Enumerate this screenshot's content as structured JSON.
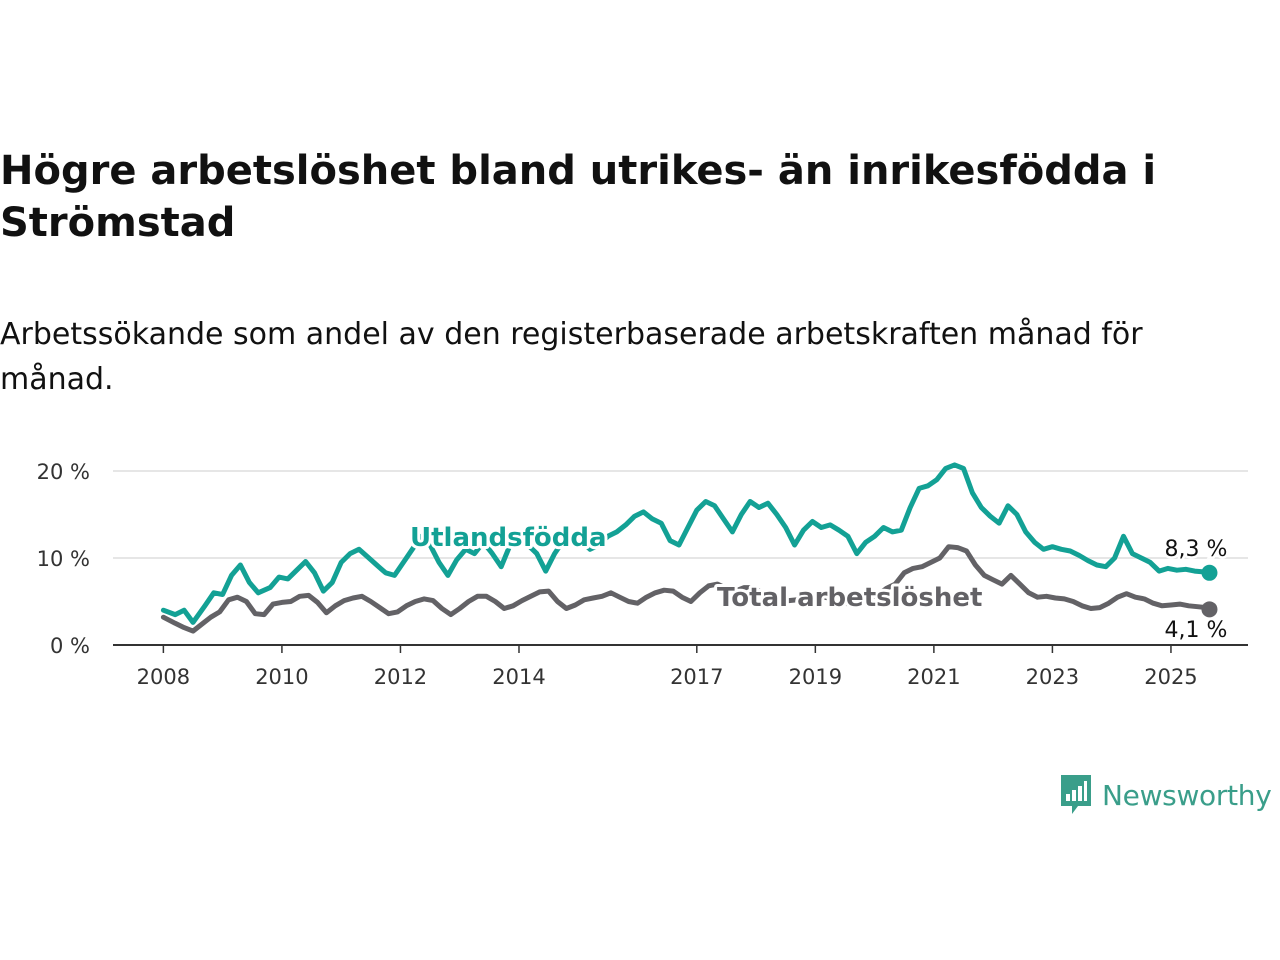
{
  "title": "Högre arbetslöshet bland utrikes- än inrikesfödda i Strömstad",
  "subtitle": "Arbetssökande som andel av den registerbaserade arbetskraften månad för månad.",
  "brand": {
    "name": "Newsworthy",
    "icon": "newsworthy-logo-icon",
    "color": "#3a9e8a"
  },
  "chart_data": {
    "type": "line",
    "y_ticks": [
      {
        "value": 0,
        "label": "0 %"
      },
      {
        "value": 10,
        "label": "10 %"
      },
      {
        "value": 20,
        "label": "20 %"
      }
    ],
    "x_ticks": [
      {
        "value": 2008.0,
        "label": "2008"
      },
      {
        "value": 2010.0,
        "label": "2010"
      },
      {
        "value": 2012.0,
        "label": "2012"
      },
      {
        "value": 2014.0,
        "label": "2014"
      },
      {
        "value": 2017.0,
        "label": "2017"
      },
      {
        "value": 2019.0,
        "label": "2019"
      },
      {
        "value": 2021.0,
        "label": "2021"
      },
      {
        "value": 2023.0,
        "label": "2023"
      },
      {
        "value": 2025.0,
        "label": "2025"
      }
    ],
    "xlim": [
      2007.15,
      2026.3
    ],
    "ylim": [
      0,
      20
    ],
    "grid": true,
    "series": [
      {
        "name": "Utlandsfödda",
        "color": "#13a195",
        "end_label": "8,3 %",
        "points": [
          [
            2008.0,
            4.0
          ],
          [
            2008.2,
            3.5
          ],
          [
            2008.35,
            4.0
          ],
          [
            2008.5,
            2.6
          ],
          [
            2008.7,
            4.5
          ],
          [
            2008.85,
            6.0
          ],
          [
            2009.0,
            5.8
          ],
          [
            2009.15,
            8.0
          ],
          [
            2009.3,
            9.2
          ],
          [
            2009.45,
            7.2
          ],
          [
            2009.6,
            6.0
          ],
          [
            2009.8,
            6.6
          ],
          [
            2009.95,
            7.8
          ],
          [
            2010.1,
            7.6
          ],
          [
            2010.25,
            8.6
          ],
          [
            2010.4,
            9.6
          ],
          [
            2010.55,
            8.3
          ],
          [
            2010.7,
            6.2
          ],
          [
            2010.85,
            7.2
          ],
          [
            2011.0,
            9.5
          ],
          [
            2011.15,
            10.5
          ],
          [
            2011.3,
            11.0
          ],
          [
            2011.45,
            10.1
          ],
          [
            2011.6,
            9.2
          ],
          [
            2011.75,
            8.3
          ],
          [
            2011.9,
            8.0
          ],
          [
            2012.05,
            9.5
          ],
          [
            2012.2,
            11.0
          ],
          [
            2012.35,
            12.5
          ],
          [
            2012.5,
            11.5
          ],
          [
            2012.65,
            9.5
          ],
          [
            2012.8,
            8.0
          ],
          [
            2012.95,
            9.8
          ],
          [
            2013.1,
            11.0
          ],
          [
            2013.25,
            10.5
          ],
          [
            2013.4,
            11.8
          ],
          [
            2013.55,
            10.5
          ],
          [
            2013.7,
            9.0
          ],
          [
            2013.85,
            11.5
          ],
          [
            2014.0,
            12.5
          ],
          [
            2014.15,
            11.5
          ],
          [
            2014.3,
            10.5
          ],
          [
            2014.45,
            8.5
          ],
          [
            2014.6,
            10.5
          ],
          [
            2014.75,
            12.0
          ],
          [
            2014.9,
            12.5
          ],
          [
            2015.05,
            12.0
          ],
          [
            2015.2,
            11.0
          ],
          [
            2015.35,
            11.5
          ],
          [
            2015.5,
            12.5
          ],
          [
            2015.65,
            13.0
          ],
          [
            2015.8,
            13.8
          ],
          [
            2015.95,
            14.8
          ],
          [
            2016.1,
            15.3
          ],
          [
            2016.25,
            14.5
          ],
          [
            2016.4,
            14.0
          ],
          [
            2016.55,
            12.0
          ],
          [
            2016.7,
            11.5
          ],
          [
            2016.85,
            13.5
          ],
          [
            2017.0,
            15.5
          ],
          [
            2017.15,
            16.5
          ],
          [
            2017.3,
            16.0
          ],
          [
            2017.45,
            14.5
          ],
          [
            2017.6,
            13.0
          ],
          [
            2017.75,
            15.0
          ],
          [
            2017.9,
            16.5
          ],
          [
            2018.05,
            15.8
          ],
          [
            2018.2,
            16.3
          ],
          [
            2018.35,
            15.0
          ],
          [
            2018.5,
            13.5
          ],
          [
            2018.65,
            11.5
          ],
          [
            2018.8,
            13.2
          ],
          [
            2018.95,
            14.2
          ],
          [
            2019.1,
            13.5
          ],
          [
            2019.25,
            13.8
          ],
          [
            2019.4,
            13.2
          ],
          [
            2019.55,
            12.5
          ],
          [
            2019.7,
            10.5
          ],
          [
            2019.85,
            11.8
          ],
          [
            2020.0,
            12.5
          ],
          [
            2020.15,
            13.5
          ],
          [
            2020.3,
            13.0
          ],
          [
            2020.45,
            13.2
          ],
          [
            2020.6,
            15.8
          ],
          [
            2020.75,
            18.0
          ],
          [
            2020.9,
            18.3
          ],
          [
            2021.05,
            19.0
          ],
          [
            2021.2,
            20.3
          ],
          [
            2021.35,
            20.7
          ],
          [
            2021.5,
            20.3
          ],
          [
            2021.65,
            17.5
          ],
          [
            2021.8,
            15.8
          ],
          [
            2021.95,
            14.8
          ],
          [
            2022.1,
            14.0
          ],
          [
            2022.25,
            16.0
          ],
          [
            2022.4,
            15.0
          ],
          [
            2022.55,
            13.0
          ],
          [
            2022.7,
            11.8
          ],
          [
            2022.85,
            11.0
          ],
          [
            2023.0,
            11.3
          ],
          [
            2023.15,
            11.0
          ],
          [
            2023.3,
            10.8
          ],
          [
            2023.45,
            10.3
          ],
          [
            2023.6,
            9.7
          ],
          [
            2023.75,
            9.2
          ],
          [
            2023.9,
            9.0
          ],
          [
            2024.05,
            10.0
          ],
          [
            2024.2,
            12.5
          ],
          [
            2024.35,
            10.5
          ],
          [
            2024.5,
            10.0
          ],
          [
            2024.65,
            9.5
          ],
          [
            2024.8,
            8.5
          ],
          [
            2024.95,
            8.8
          ],
          [
            2025.1,
            8.6
          ],
          [
            2025.25,
            8.7
          ],
          [
            2025.4,
            8.5
          ],
          [
            2025.55,
            8.4
          ],
          [
            2025.65,
            8.3
          ]
        ]
      },
      {
        "name": "Total arbetslöshet",
        "color": "#636266",
        "end_label": "4,1 %",
        "points": [
          [
            2008.0,
            3.2
          ],
          [
            2008.2,
            2.5
          ],
          [
            2008.35,
            2.0
          ],
          [
            2008.5,
            1.6
          ],
          [
            2008.65,
            2.4
          ],
          [
            2008.8,
            3.2
          ],
          [
            2008.95,
            3.8
          ],
          [
            2009.1,
            5.2
          ],
          [
            2009.25,
            5.5
          ],
          [
            2009.4,
            5.0
          ],
          [
            2009.55,
            3.6
          ],
          [
            2009.7,
            3.5
          ],
          [
            2009.85,
            4.7
          ],
          [
            2010.0,
            4.9
          ],
          [
            2010.15,
            5.0
          ],
          [
            2010.3,
            5.6
          ],
          [
            2010.45,
            5.7
          ],
          [
            2010.6,
            4.9
          ],
          [
            2010.75,
            3.7
          ],
          [
            2010.9,
            4.5
          ],
          [
            2011.05,
            5.1
          ],
          [
            2011.2,
            5.4
          ],
          [
            2011.35,
            5.6
          ],
          [
            2011.5,
            5.0
          ],
          [
            2011.65,
            4.3
          ],
          [
            2011.8,
            3.6
          ],
          [
            2011.95,
            3.8
          ],
          [
            2012.1,
            4.5
          ],
          [
            2012.25,
            5.0
          ],
          [
            2012.4,
            5.3
          ],
          [
            2012.55,
            5.1
          ],
          [
            2012.7,
            4.2
          ],
          [
            2012.85,
            3.5
          ],
          [
            2013.0,
            4.2
          ],
          [
            2013.15,
            5.0
          ],
          [
            2013.3,
            5.6
          ],
          [
            2013.45,
            5.6
          ],
          [
            2013.6,
            5.0
          ],
          [
            2013.75,
            4.2
          ],
          [
            2013.9,
            4.5
          ],
          [
            2014.05,
            5.1
          ],
          [
            2014.2,
            5.6
          ],
          [
            2014.35,
            6.1
          ],
          [
            2014.5,
            6.2
          ],
          [
            2014.65,
            5.0
          ],
          [
            2014.8,
            4.2
          ],
          [
            2014.95,
            4.6
          ],
          [
            2015.1,
            5.2
          ],
          [
            2015.25,
            5.4
          ],
          [
            2015.4,
            5.6
          ],
          [
            2015.55,
            6.0
          ],
          [
            2015.7,
            5.5
          ],
          [
            2015.85,
            5.0
          ],
          [
            2016.0,
            4.8
          ],
          [
            2016.15,
            5.5
          ],
          [
            2016.3,
            6.0
          ],
          [
            2016.45,
            6.3
          ],
          [
            2016.6,
            6.2
          ],
          [
            2016.75,
            5.5
          ],
          [
            2016.9,
            5.0
          ],
          [
            2017.05,
            6.0
          ],
          [
            2017.2,
            6.8
          ],
          [
            2017.35,
            7.0
          ],
          [
            2017.5,
            6.5
          ],
          [
            2017.65,
            6.2
          ],
          [
            2017.8,
            6.6
          ],
          [
            2017.95,
            6.6
          ],
          [
            2018.1,
            6.0
          ],
          [
            2018.25,
            5.8
          ],
          [
            2018.4,
            5.5
          ],
          [
            2018.55,
            5.1
          ],
          [
            2018.7,
            5.2
          ],
          [
            2018.85,
            5.6
          ],
          [
            2019.0,
            5.7
          ],
          [
            2019.15,
            5.5
          ],
          [
            2019.3,
            5.3
          ],
          [
            2019.45,
            5.0
          ],
          [
            2019.6,
            4.6
          ],
          [
            2019.75,
            5.2
          ],
          [
            2019.9,
            5.5
          ],
          [
            2020.05,
            5.7
          ],
          [
            2020.2,
            6.5
          ],
          [
            2020.35,
            7.0
          ],
          [
            2020.5,
            8.3
          ],
          [
            2020.65,
            8.8
          ],
          [
            2020.8,
            9.0
          ],
          [
            2020.95,
            9.5
          ],
          [
            2021.1,
            10.0
          ],
          [
            2021.25,
            11.3
          ],
          [
            2021.4,
            11.2
          ],
          [
            2021.55,
            10.8
          ],
          [
            2021.7,
            9.2
          ],
          [
            2021.85,
            8.0
          ],
          [
            2022.0,
            7.5
          ],
          [
            2022.15,
            7.0
          ],
          [
            2022.3,
            8.0
          ],
          [
            2022.45,
            7.0
          ],
          [
            2022.6,
            6.0
          ],
          [
            2022.75,
            5.5
          ],
          [
            2022.9,
            5.6
          ],
          [
            2023.05,
            5.4
          ],
          [
            2023.2,
            5.3
          ],
          [
            2023.35,
            5.0
          ],
          [
            2023.5,
            4.5
          ],
          [
            2023.65,
            4.2
          ],
          [
            2023.8,
            4.3
          ],
          [
            2023.95,
            4.8
          ],
          [
            2024.1,
            5.5
          ],
          [
            2024.25,
            5.9
          ],
          [
            2024.4,
            5.5
          ],
          [
            2024.55,
            5.3
          ],
          [
            2024.7,
            4.8
          ],
          [
            2024.85,
            4.5
          ],
          [
            2025.0,
            4.6
          ],
          [
            2025.15,
            4.7
          ],
          [
            2025.3,
            4.5
          ],
          [
            2025.45,
            4.4
          ],
          [
            2025.6,
            4.3
          ],
          [
            2025.65,
            4.1
          ]
        ]
      }
    ]
  }
}
